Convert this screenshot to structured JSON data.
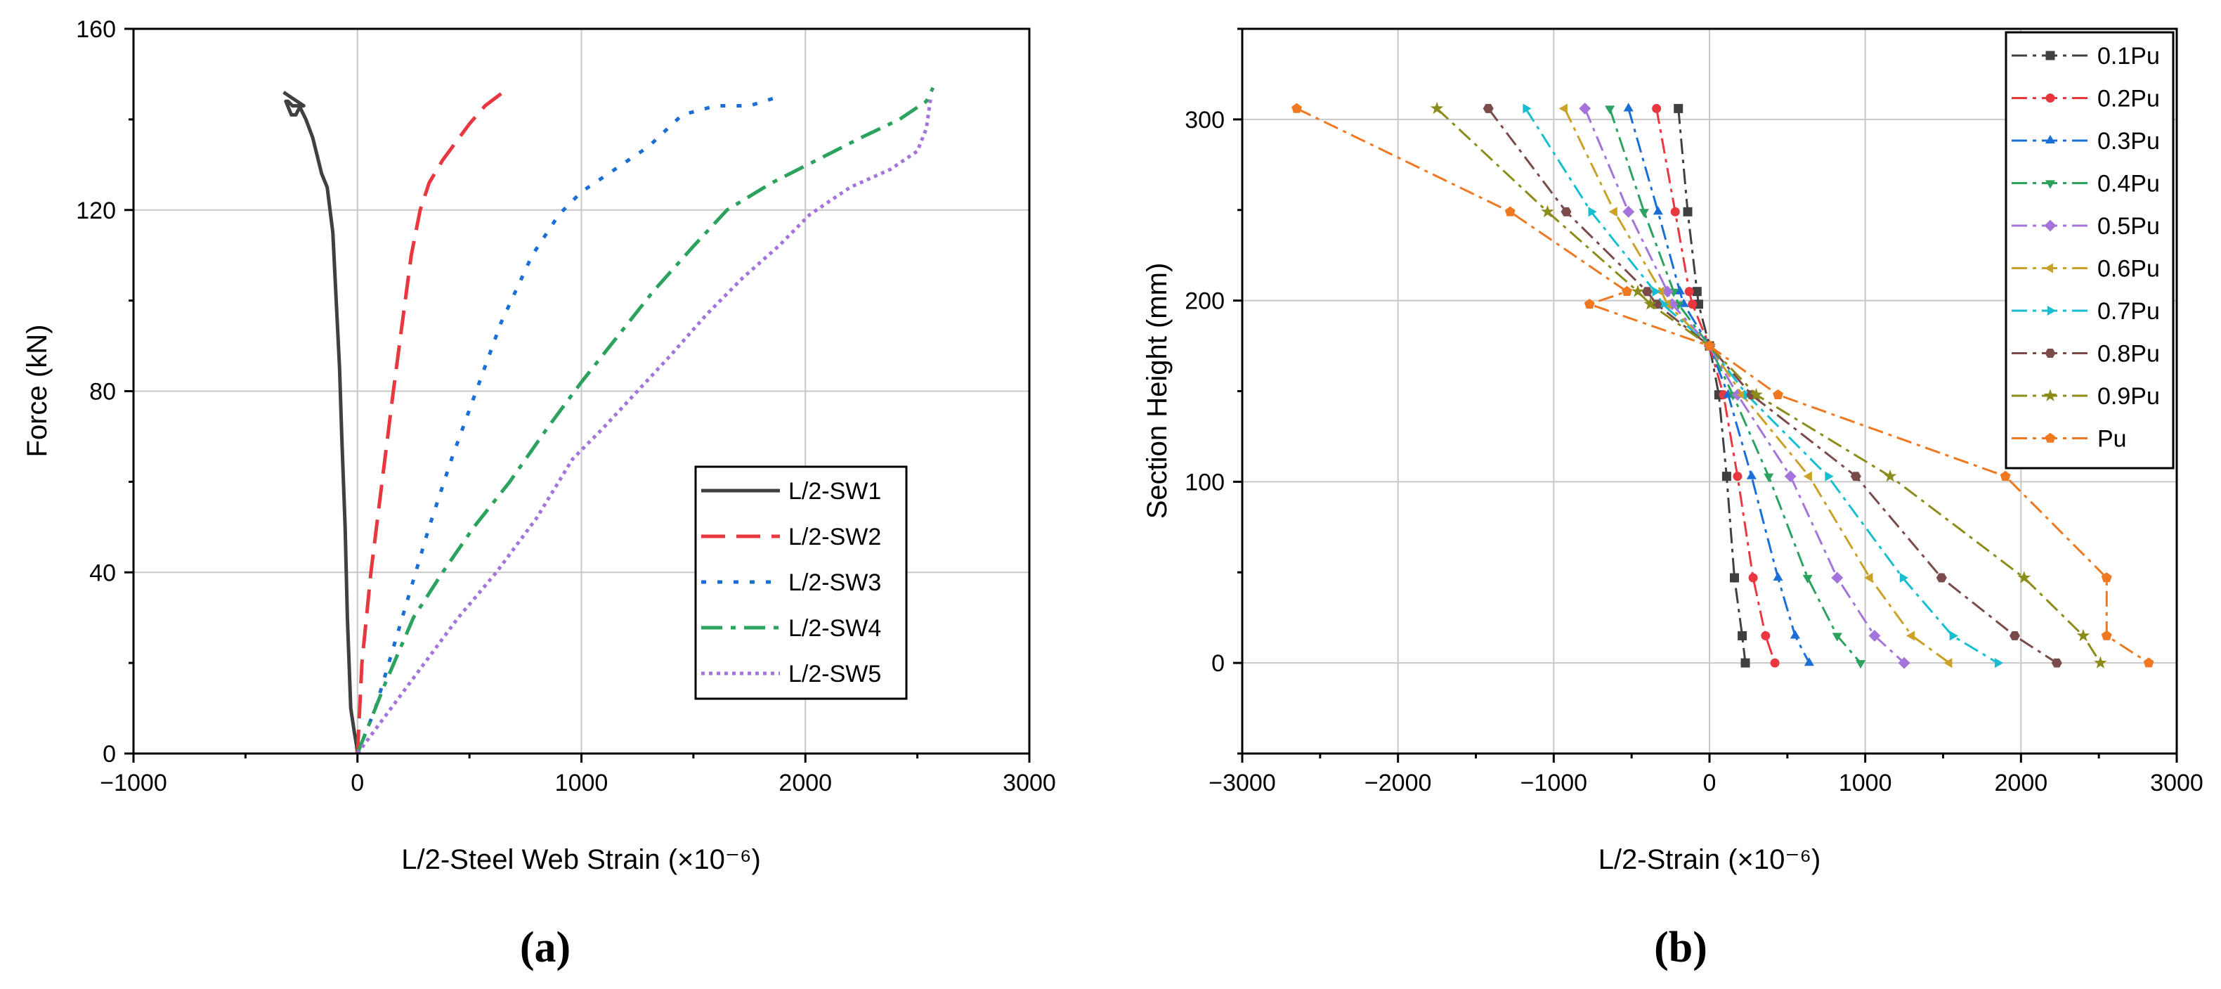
{
  "chart_data": [
    {
      "type": "line",
      "panel_label": "(a)",
      "xlabel": "L/2-Steel Web Strain (×10⁻⁶)",
      "ylabel": "Force (kN)",
      "xlim": [
        -1000,
        3000
      ],
      "ylim": [
        0,
        160
      ],
      "xticks": [
        -1000,
        0,
        1000,
        2000,
        3000
      ],
      "yticks": [
        0,
        40,
        80,
        120,
        160
      ],
      "xtick_labels": [
        "−1000",
        "0",
        "1000",
        "2000",
        "3000"
      ],
      "ytick_labels": [
        "0",
        "40",
        "80",
        "120",
        "160"
      ],
      "grid": true,
      "legend_position": "lower-right",
      "series": [
        {
          "name": "L/2-SW1",
          "color": "#404040",
          "style": "solid",
          "x": [
            0,
            -5,
            -15,
            -30,
            -45,
            -55,
            -70,
            -80,
            -95,
            -110,
            -135,
            -160,
            -180,
            -200,
            -230,
            -260,
            -290,
            -310,
            -320,
            -295,
            -275,
            -255,
            -240,
            -270,
            -300,
            -330
          ],
          "y": [
            0,
            2,
            5,
            10,
            30,
            50,
            70,
            85,
            100,
            115,
            125,
            128,
            132,
            136,
            140,
            143,
            143,
            144,
            144,
            141,
            141,
            143,
            143,
            144,
            145,
            146
          ]
        },
        {
          "name": "L/2-SW2",
          "color": "#e8373e",
          "style": "dash",
          "x": [
            0,
            20,
            60,
            110,
            160,
            200,
            240,
            280,
            320,
            380,
            440,
            500,
            570,
            650
          ],
          "y": [
            0,
            20,
            40,
            60,
            80,
            95,
            110,
            120,
            126,
            131,
            135,
            139,
            143,
            146
          ]
        },
        {
          "name": "L/2-SW3",
          "color": "#1a6fd6",
          "style": "dot",
          "x": [
            0,
            80,
            200,
            320,
            420,
            530,
            640,
            780,
            900,
            1000,
            1150,
            1300,
            1450,
            1600,
            1750,
            1880
          ],
          "y": [
            0,
            10,
            30,
            50,
            65,
            80,
            95,
            110,
            119,
            124,
            129,
            134,
            141,
            143,
            143,
            145
          ]
        },
        {
          "name": "L/2-SW4",
          "color": "#2ca25f",
          "style": "dashdot",
          "x": [
            0,
            120,
            250,
            380,
            520,
            680,
            850,
            1000,
            1160,
            1320,
            1500,
            1650,
            1850,
            2050,
            2250,
            2420,
            2540,
            2570
          ],
          "y": [
            0,
            15,
            30,
            40,
            50,
            60,
            72,
            82,
            92,
            102,
            112,
            120,
            126,
            131,
            136,
            140,
            144,
            147
          ]
        },
        {
          "name": "L/2-SW5",
          "color": "#a374db",
          "style": "shortdot",
          "x": [
            0,
            150,
            300,
            450,
            620,
            800,
            960,
            1100,
            1250,
            1400,
            1560,
            1720,
            1880,
            2020,
            2200,
            2380,
            2500,
            2540,
            2560
          ],
          "y": [
            0,
            10,
            20,
            30,
            40,
            52,
            65,
            72,
            80,
            88,
            97,
            105,
            112,
            119,
            125,
            129,
            133,
            138,
            145
          ]
        }
      ]
    },
    {
      "type": "line",
      "panel_label": "(b)",
      "xlabel": "L/2-Strain (×10⁻⁶)",
      "ylabel": "Section Height (mm)",
      "xlim": [
        -3000,
        3000
      ],
      "ylim": [
        -50,
        350
      ],
      "xticks": [
        -3000,
        -2000,
        -1000,
        0,
        1000,
        2000,
        3000
      ],
      "yticks": [
        0,
        100,
        200,
        300
      ],
      "xtick_labels": [
        "−3000",
        "−2000",
        "−1000",
        "0",
        "1000",
        "2000",
        "3000"
      ],
      "ytick_labels": [
        "0",
        "100",
        "200",
        "300"
      ],
      "grid": true,
      "legend_position": "top-right",
      "series": [
        {
          "name": "0.1Pu",
          "color": "#404040",
          "marker": "square",
          "x": [
            -200,
            -140,
            -80,
            -70,
            0,
            60,
            110,
            160,
            210,
            230
          ],
          "y": [
            306,
            249,
            205,
            198,
            175,
            148,
            103,
            47,
            15,
            0
          ]
        },
        {
          "name": "0.2Pu",
          "color": "#e8373e",
          "marker": "circle",
          "x": [
            -340,
            -220,
            -130,
            -110,
            0,
            90,
            180,
            280,
            360,
            420
          ],
          "y": [
            306,
            249,
            205,
            198,
            175,
            148,
            103,
            47,
            15,
            0
          ]
        },
        {
          "name": "0.3Pu",
          "color": "#1a6fd6",
          "marker": "triangle-up",
          "x": [
            -520,
            -330,
            -190,
            -165,
            0,
            120,
            270,
            440,
            550,
            640
          ],
          "y": [
            306,
            249,
            205,
            198,
            175,
            148,
            103,
            47,
            15,
            0
          ]
        },
        {
          "name": "0.4Pu",
          "color": "#2ca25f",
          "marker": "triangle-down",
          "x": [
            -640,
            -420,
            -230,
            -200,
            0,
            150,
            380,
            630,
            820,
            970
          ],
          "y": [
            306,
            249,
            205,
            198,
            175,
            148,
            103,
            47,
            15,
            0
          ]
        },
        {
          "name": "0.5Pu",
          "color": "#a374db",
          "marker": "diamond",
          "x": [
            -800,
            -520,
            -270,
            -240,
            0,
            180,
            520,
            820,
            1060,
            1250
          ],
          "y": [
            306,
            249,
            205,
            198,
            175,
            148,
            103,
            47,
            15,
            0
          ]
        },
        {
          "name": "0.6Pu",
          "color": "#c9a227",
          "marker": "triangle-left",
          "x": [
            -930,
            -610,
            -310,
            -270,
            0,
            210,
            640,
            1030,
            1300,
            1540
          ],
          "y": [
            306,
            249,
            205,
            198,
            175,
            148,
            103,
            47,
            15,
            0
          ]
        },
        {
          "name": "0.7Pu",
          "color": "#17becf",
          "marker": "triangle-right",
          "x": [
            -1180,
            -760,
            -350,
            -300,
            0,
            240,
            760,
            1240,
            1560,
            1850
          ],
          "y": [
            306,
            249,
            205,
            198,
            175,
            148,
            103,
            47,
            15,
            0
          ]
        },
        {
          "name": "0.8Pu",
          "color": "#7b4a4a",
          "marker": "hexagon",
          "x": [
            -1420,
            -920,
            -400,
            -340,
            0,
            270,
            940,
            1490,
            1960,
            2230
          ],
          "y": [
            306,
            249,
            205,
            198,
            175,
            148,
            103,
            47,
            15,
            0
          ]
        },
        {
          "name": "0.9Pu",
          "color": "#8c8c1a",
          "marker": "star",
          "x": [
            -1750,
            -1040,
            -460,
            -380,
            0,
            300,
            1160,
            2020,
            2400,
            2510
          ],
          "y": [
            306,
            249,
            205,
            198,
            175,
            148,
            103,
            47,
            15,
            0
          ]
        },
        {
          "name": "Pu",
          "color": "#f07820",
          "marker": "pentagon",
          "x": [
            -2650,
            -1280,
            -530,
            -770,
            0,
            440,
            1900,
            2550,
            2550,
            2820
          ],
          "y": [
            306,
            249,
            205,
            198,
            175,
            148,
            103,
            47,
            15,
            0
          ]
        }
      ]
    }
  ]
}
